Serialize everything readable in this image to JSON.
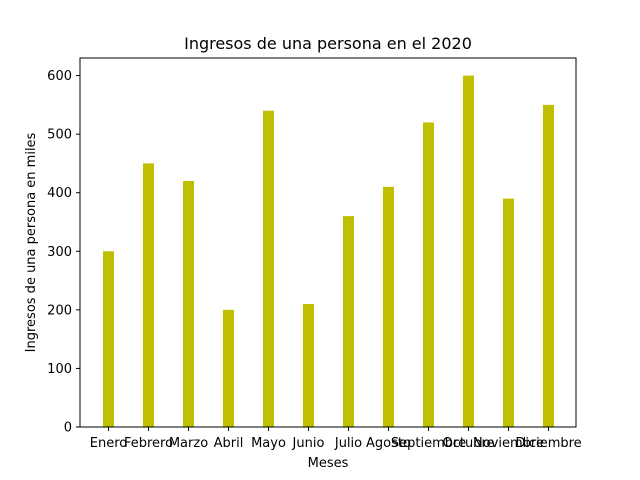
{
  "chart_data": {
    "type": "bar",
    "title": "Ingresos de una persona en el 2020",
    "xlabel": "Meses",
    "ylabel": "Ingresos de una persona en miles",
    "categories": [
      "Enero",
      "Febrero",
      "Marzo",
      "Abril",
      "Mayo",
      "Junio",
      "Julio",
      "Agosto",
      "Septiembre",
      "Octubre",
      "Noviembre",
      "Diciembre"
    ],
    "values": [
      300,
      450,
      420,
      200,
      540,
      210,
      360,
      410,
      520,
      600,
      390,
      550
    ],
    "ylim": [
      0,
      630
    ],
    "yticks": [
      0,
      100,
      200,
      300,
      400,
      500,
      600
    ],
    "bar_color": "#bfbf00",
    "grid": false,
    "legend": "none"
  }
}
